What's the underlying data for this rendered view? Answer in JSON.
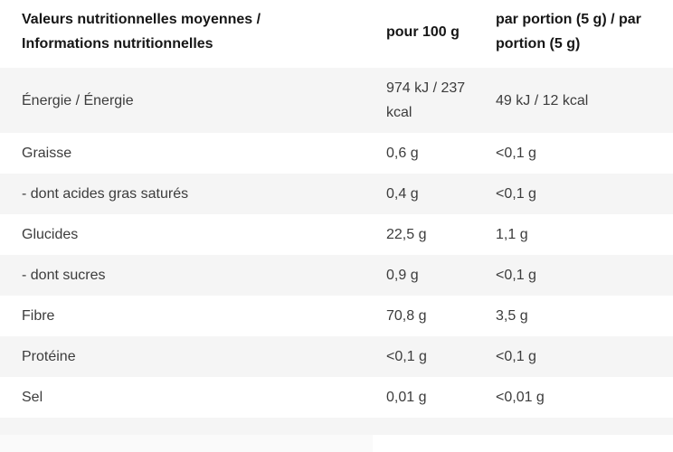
{
  "table": {
    "columns": [
      {
        "label": "Valeurs nutritionnelles moyennes / Informations nutritionnelles"
      },
      {
        "label": "pour 100 g"
      },
      {
        "label": "par portion (5 g) / par portion (5 g)"
      }
    ],
    "rows": [
      {
        "name": "Énergie / Énergie",
        "per100": "974 kJ / 237 kcal",
        "portion": "49 kJ / 12 kcal"
      },
      {
        "name": "Graisse",
        "per100": "0,6 g",
        "portion": "<0,1 g"
      },
      {
        "name": "- dont acides gras saturés",
        "per100": "0,4 g",
        "portion": "<0,1 g"
      },
      {
        "name": "Glucides",
        "per100": "22,5 g",
        "portion": "1,1 g"
      },
      {
        "name": "- dont sucres",
        "per100": "0,9 g",
        "portion": "<0,1 g"
      },
      {
        "name": "Fibre",
        "per100": "70,8 g",
        "portion": "3,5 g"
      },
      {
        "name": "Protéine",
        "per100": "<0,1 g",
        "portion": "<0,1 g"
      },
      {
        "name": "Sel",
        "per100": "0,01 g",
        "portion": "<0,01 g"
      }
    ]
  },
  "colors": {
    "row_alt_bg": "#f5f5f5",
    "header_text": "#161616",
    "body_text": "#3c3c3c",
    "below_left_bg": "#fafafa"
  }
}
